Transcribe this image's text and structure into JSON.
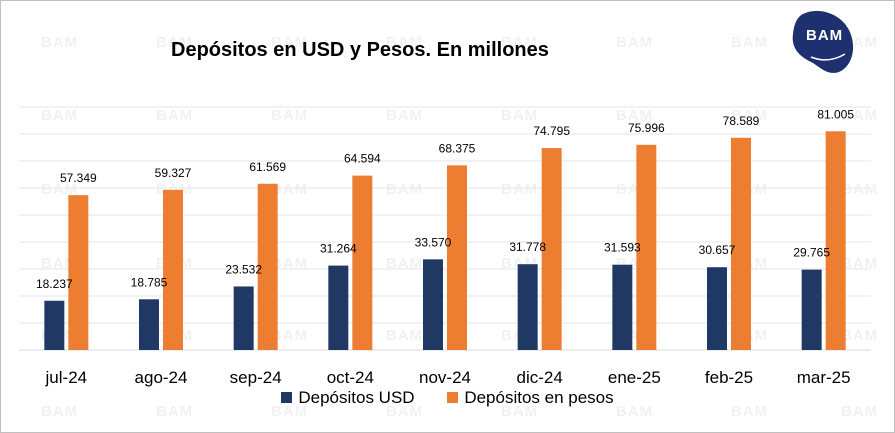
{
  "chart_data": {
    "type": "bar",
    "title": "Depósitos en USD y Pesos. En millones",
    "categories": [
      "jul-24",
      "ago-24",
      "sep-24",
      "oct-24",
      "nov-24",
      "dic-24",
      "ene-25",
      "feb-25",
      "mar-25"
    ],
    "series": [
      {
        "name": "Depósitos USD",
        "color": "#1f3864",
        "values": [
          18237,
          18785,
          23532,
          31264,
          33570,
          31778,
          31593,
          30657,
          29765
        ],
        "labels": [
          "18.237",
          "18.785",
          "23.532",
          "31.264",
          "33.570",
          "31.778",
          "31.593",
          "30.657",
          "29.765"
        ]
      },
      {
        "name": "Depósitos en pesos",
        "color": "#ed7d31",
        "values": [
          57349,
          59327,
          61569,
          64594,
          68375,
          74795,
          75996,
          78589,
          81005
        ],
        "labels": [
          "57.349",
          "59.327",
          "61.569",
          "64.594",
          "68.375",
          "74.795",
          "75.996",
          "78.589",
          "81.005"
        ]
      }
    ],
    "ylim": [
      0,
      90000
    ],
    "grid": true,
    "legend_position": "bottom"
  },
  "logo": {
    "text": "BAM",
    "color": "#1f3070"
  },
  "watermark": {
    "text": "BAM"
  }
}
